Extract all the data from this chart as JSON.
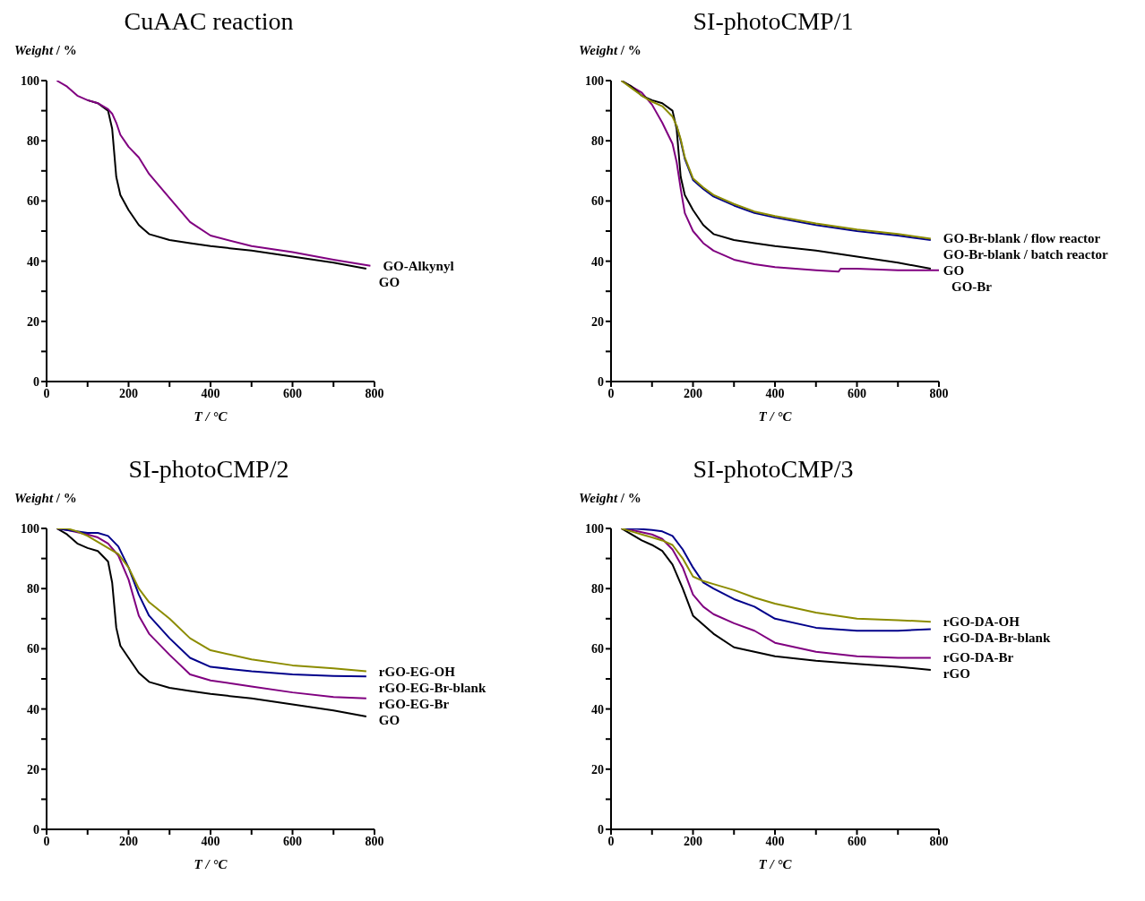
{
  "chart_data": [
    {
      "type": "line",
      "title": "CuAAC reaction",
      "xlabel": "T / °C",
      "ylabel": "Weight / %",
      "xlim": [
        0,
        800
      ],
      "ylim": [
        0,
        100
      ],
      "xticks": [
        0,
        {
          "value": 100,
          "label": null
        },
        200,
        {
          "value": 300,
          "label": null
        },
        400,
        {
          "value": 500,
          "label": null
        },
        600,
        {
          "value": 700,
          "label": null
        },
        800
      ],
      "yticks": [
        0,
        {
          "value": 10,
          "label": null
        },
        20,
        {
          "value": 30,
          "label": null
        },
        40,
        {
          "value": 50,
          "label": null
        },
        60,
        {
          "value": 70,
          "label": null
        },
        80,
        {
          "value": 90,
          "label": null
        },
        100
      ],
      "grid": false,
      "legend": false,
      "marker": "none",
      "line_style": "solid",
      "series": [
        {
          "name": "GO-Alkynyl",
          "color": "#800080",
          "x": [
            25,
            50,
            75,
            100,
            125,
            150,
            160,
            170,
            180,
            200,
            225,
            250,
            300,
            350,
            400,
            500,
            600,
            700,
            790
          ],
          "values": [
            100,
            98,
            95,
            93.5,
            92.5,
            90.5,
            89,
            86,
            82,
            78,
            74.5,
            69,
            61,
            53,
            48.5,
            45,
            43,
            40.5,
            38.5
          ]
        },
        {
          "name": "GO",
          "color": "#000000",
          "x": [
            100,
            125,
            150,
            160,
            170,
            180,
            200,
            225,
            250,
            300,
            350,
            400,
            500,
            600,
            700,
            780
          ],
          "values": [
            93.5,
            92.5,
            90,
            84,
            68,
            62,
            57,
            52,
            49,
            47,
            46,
            45,
            43.5,
            41.5,
            39.5,
            37.5
          ]
        }
      ]
    },
    {
      "type": "line",
      "title": "SI-photoCMP/1",
      "xlabel": "T / °C",
      "ylabel": "Weight / %",
      "xlim": [
        0,
        800
      ],
      "ylim": [
        0,
        100
      ],
      "xticks": [
        0,
        {
          "value": 100,
          "label": null
        },
        200,
        {
          "value": 300,
          "label": null
        },
        400,
        {
          "value": 500,
          "label": null
        },
        600,
        {
          "value": 700,
          "label": null
        },
        800
      ],
      "yticks": [
        0,
        {
          "value": 10,
          "label": null
        },
        20,
        {
          "value": 30,
          "label": null
        },
        40,
        {
          "value": 50,
          "label": null
        },
        60,
        {
          "value": 70,
          "label": null
        },
        80,
        {
          "value": 90,
          "label": null
        },
        100
      ],
      "grid": false,
      "legend": false,
      "marker": "none",
      "line_style": "solid",
      "series": [
        {
          "name": "GO-Br-blank / flow reactor",
          "color": "#8c8c00",
          "x": [
            25,
            50,
            75,
            100,
            125,
            150,
            160,
            170,
            180,
            200,
            225,
            250,
            300,
            350,
            400,
            500,
            600,
            700,
            780
          ],
          "values": [
            100,
            97.5,
            95,
            93,
            91.5,
            88,
            85,
            80.5,
            74.5,
            67.5,
            64.5,
            62,
            59,
            56.5,
            55,
            52.5,
            50.5,
            49,
            47.5
          ]
        },
        {
          "name": "GO-Br-blank / batch reactor",
          "color": "#00008b",
          "x": [
            160,
            170,
            180,
            200,
            225,
            250,
            300,
            350,
            400,
            500,
            600,
            700,
            780
          ],
          "values": [
            85,
            80,
            74,
            67,
            64,
            61.5,
            58.5,
            56,
            54.5,
            52,
            50,
            48.5,
            47
          ]
        },
        {
          "name": "GO",
          "color": "#000000",
          "x": [
            25,
            50,
            75,
            100,
            125,
            150,
            160,
            170,
            180,
            200,
            225,
            250,
            300,
            350,
            400,
            500,
            600,
            700,
            780
          ],
          "values": [
            100,
            98,
            95,
            93.5,
            92.5,
            90,
            84,
            68,
            62,
            57,
            52,
            49,
            47,
            46,
            45,
            43.5,
            41.5,
            39.5,
            37.5
          ]
        },
        {
          "name": "GO-Br",
          "color": "#800080",
          "x": [
            25,
            50,
            75,
            100,
            125,
            150,
            160,
            170,
            180,
            200,
            225,
            250,
            300,
            350,
            400,
            500,
            555,
            560,
            600,
            700,
            800
          ],
          "values": [
            100,
            98,
            96,
            92,
            86,
            79,
            73,
            64,
            56,
            50,
            46,
            43.5,
            40.5,
            39,
            38,
            37,
            36.5,
            37.5,
            37.5,
            37,
            37
          ]
        }
      ]
    },
    {
      "type": "line",
      "title": "SI-photoCMP/2",
      "xlabel": "T / °C",
      "ylabel": "Weight / %",
      "xlim": [
        0,
        800
      ],
      "ylim": [
        0,
        100
      ],
      "xticks": [
        0,
        {
          "value": 100,
          "label": null
        },
        200,
        {
          "value": 300,
          "label": null
        },
        400,
        {
          "value": 500,
          "label": null
        },
        600,
        {
          "value": 700,
          "label": null
        },
        800
      ],
      "yticks": [
        0,
        {
          "value": 10,
          "label": null
        },
        20,
        {
          "value": 30,
          "label": null
        },
        40,
        {
          "value": 50,
          "label": null
        },
        60,
        {
          "value": 70,
          "label": null
        },
        80,
        {
          "value": 90,
          "label": null
        },
        100
      ],
      "grid": false,
      "legend": false,
      "marker": "none",
      "line_style": "solid",
      "series": [
        {
          "name": "rGO-EG-OH",
          "color": "#8c8c00",
          "x": [
            25,
            50,
            75,
            100,
            125,
            150,
            175,
            200,
            225,
            250,
            300,
            350,
            400,
            500,
            600,
            700,
            780
          ],
          "values": [
            100,
            100,
            99,
            97.5,
            95.5,
            93.5,
            91.5,
            87,
            80,
            75.5,
            70,
            63.5,
            59.5,
            56.5,
            54.5,
            53.5,
            52.5
          ]
        },
        {
          "name": "rGO-EG-Br-blank",
          "color": "#00008b",
          "x": [
            25,
            50,
            100,
            125,
            150,
            175,
            200,
            225,
            250,
            300,
            350,
            400,
            500,
            600,
            700,
            780
          ],
          "values": [
            100,
            99.5,
            98.5,
            98.5,
            97.5,
            94,
            87,
            78,
            71,
            63.5,
            57,
            54,
            52.5,
            51.5,
            51,
            50.8
          ]
        },
        {
          "name": "rGO-EG-Br",
          "color": "#800080",
          "x": [
            25,
            50,
            100,
            125,
            150,
            175,
            200,
            225,
            250,
            300,
            350,
            400,
            500,
            600,
            700,
            780
          ],
          "values": [
            100,
            99.5,
            98,
            97,
            95,
            91,
            83,
            71,
            65,
            58,
            51.5,
            49.5,
            47.5,
            45.5,
            44,
            43.5
          ]
        },
        {
          "name": "GO",
          "color": "#000000",
          "x": [
            25,
            50,
            75,
            100,
            125,
            150,
            160,
            170,
            180,
            200,
            225,
            250,
            300,
            350,
            400,
            500,
            600,
            700,
            780
          ],
          "values": [
            100,
            98,
            95,
            93.5,
            92.5,
            89,
            82,
            67,
            61,
            57,
            52,
            49,
            47,
            46,
            45,
            43.5,
            41.5,
            39.5,
            37.5
          ]
        }
      ]
    },
    {
      "type": "line",
      "title": "SI-photoCMP/3",
      "xlabel": "T / °C",
      "ylabel": "Weight / %",
      "xlim": [
        0,
        800
      ],
      "ylim": [
        0,
        100
      ],
      "xticks": [
        0,
        {
          "value": 100,
          "label": null
        },
        200,
        {
          "value": 300,
          "label": null
        },
        400,
        {
          "value": 500,
          "label": null
        },
        600,
        {
          "value": 700,
          "label": null
        },
        800
      ],
      "yticks": [
        0,
        {
          "value": 10,
          "label": null
        },
        20,
        {
          "value": 30,
          "label": null
        },
        40,
        {
          "value": 50,
          "label": null
        },
        60,
        {
          "value": 70,
          "label": null
        },
        80,
        {
          "value": 90,
          "label": null
        },
        100
      ],
      "grid": false,
      "legend": false,
      "marker": "none",
      "line_style": "solid",
      "series": [
        {
          "name": "rGO-DA-OH",
          "color": "#8c8c00",
          "x": [
            25,
            50,
            75,
            100,
            125,
            150,
            175,
            200,
            225,
            250,
            300,
            350,
            400,
            500,
            600,
            700,
            780
          ],
          "values": [
            100,
            99,
            98,
            97,
            96,
            94.5,
            90,
            84,
            82.5,
            81.5,
            79.5,
            77,
            75,
            72,
            70,
            69.5,
            69
          ]
        },
        {
          "name": "rGO-DA-Br-blank",
          "color": "#00008b",
          "x": [
            25,
            50,
            100,
            125,
            150,
            175,
            200,
            225,
            250,
            300,
            350,
            400,
            500,
            600,
            700,
            780
          ],
          "values": [
            100,
            100,
            99.5,
            99,
            97.5,
            93,
            87,
            82,
            80,
            76.5,
            74,
            70,
            67,
            66,
            66,
            66.5
          ]
        },
        {
          "name": "rGO-DA-Br",
          "color": "#800080",
          "x": [
            25,
            50,
            100,
            125,
            150,
            175,
            200,
            225,
            250,
            300,
            350,
            400,
            500,
            600,
            700,
            780
          ],
          "values": [
            100,
            99.5,
            98,
            96.5,
            93,
            87,
            78,
            74,
            71.5,
            68.5,
            66,
            62,
            59,
            57.5,
            57,
            57
          ]
        },
        {
          "name": "rGO",
          "color": "#000000",
          "x": [
            25,
            50,
            75,
            100,
            125,
            150,
            175,
            200,
            225,
            250,
            300,
            350,
            400,
            500,
            600,
            700,
            780
          ],
          "values": [
            100,
            98,
            96,
            94.5,
            92.5,
            88,
            80,
            71,
            68,
            65,
            60.5,
            59,
            57.5,
            56,
            55,
            54,
            53
          ]
        }
      ]
    }
  ]
}
